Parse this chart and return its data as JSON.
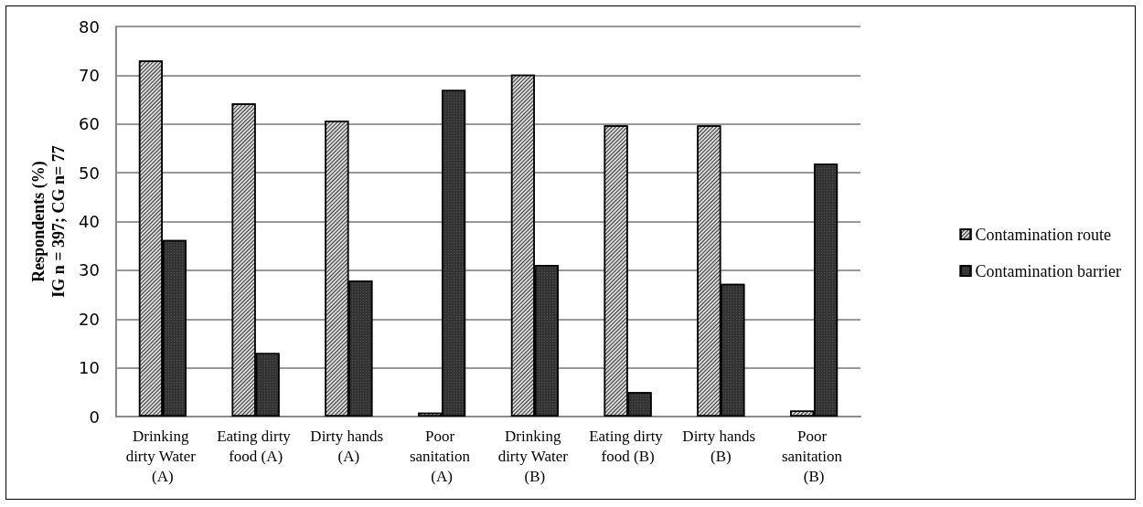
{
  "chart_data": {
    "type": "bar",
    "ylabel": "Respondents (%)\nIG n = 397; CG n= 77",
    "categories": [
      "Drinking dirty Water (A)",
      "Eating dirty food (A)",
      "Dirty hands (A)",
      "Poor sanitation (A)",
      "Drinking dirty Water (B)",
      "Eating dirty food (B)",
      "Dirty hands (B)",
      "Poor sanitation (B)"
    ],
    "series": [
      {
        "name": "Contamination route",
        "color": "#d9d9d9",
        "values": [
          73.0,
          64.2,
          60.7,
          0.8,
          70.1,
          59.7,
          59.7,
          1.2
        ]
      },
      {
        "name": "Contamination barrier",
        "color": "#333333",
        "values": [
          36.2,
          13.0,
          27.9,
          67.0,
          31.1,
          5.0,
          27.2,
          51.9
        ]
      }
    ],
    "ylim": [
      0,
      80
    ],
    "yticks": [
      0,
      10,
      20,
      30,
      40,
      50,
      60,
      70,
      80
    ],
    "grid": "y",
    "legend": "right"
  }
}
